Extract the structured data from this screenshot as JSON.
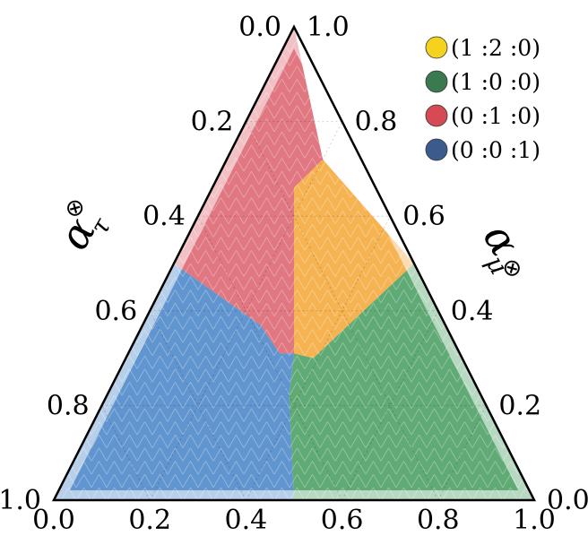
{
  "chart_data": {
    "type": "ternary",
    "axes": {
      "bottom": {
        "label": "",
        "ticks": [
          "0.0",
          "0.2",
          "0.4",
          "0.6",
          "0.8",
          "1.0"
        ]
      },
      "left": {
        "label_symbol": "α",
        "label_sub": "τ",
        "label_sup": "⊗",
        "ticks": [
          "1.0",
          "0.8",
          "0.6",
          "0.4",
          "0.2",
          "0.0"
        ]
      },
      "right": {
        "label_symbol": "α",
        "label_sub": "μ",
        "label_sup": "⊗",
        "ticks": [
          "0.0",
          "0.2",
          "0.4",
          "0.6",
          "0.8",
          "1.0"
        ]
      }
    },
    "legend": {
      "placement": "top-right",
      "entries": [
        {
          "label": "(1 :2 :0)",
          "color": "#f5d21e"
        },
        {
          "label": "(1 :0 :0)",
          "color": "#3b7a4e"
        },
        {
          "label": "(0 :1 :0)",
          "color": "#d64a55"
        },
        {
          "label": "(0 :0 :1)",
          "color": "#3c5a8c"
        }
      ]
    },
    "regions": [
      {
        "label": "(0 :1 :0)",
        "color": "#dc6470",
        "vertices_bottom_left": [
          [
            0.5,
            1.0
          ],
          [
            0.25,
            0.5
          ],
          [
            0.43,
            0.37
          ],
          [
            0.47,
            0.31
          ],
          [
            0.5,
            0.31
          ],
          [
            0.5,
            0.66
          ],
          [
            0.56,
            0.72
          ]
        ]
      },
      {
        "label": "(1 :2 :0)",
        "color": "#f5a83a",
        "vertices_bottom_left": [
          [
            0.56,
            0.72
          ],
          [
            0.5,
            0.66
          ],
          [
            0.5,
            0.31
          ],
          [
            0.54,
            0.3
          ],
          [
            0.75,
            0.5
          ]
        ]
      },
      {
        "label": "(0 :0 :1)",
        "color": "#4a86c8",
        "vertices_bottom_left": [
          [
            0.0,
            0.0
          ],
          [
            0.25,
            0.5
          ],
          [
            0.43,
            0.37
          ],
          [
            0.47,
            0.31
          ],
          [
            0.5,
            0.31
          ],
          [
            0.49,
            0.22
          ],
          [
            0.5,
            0.0
          ]
        ]
      },
      {
        "label": "(1 :0 :0)",
        "color": "#4a9e62",
        "vertices_bottom_left": [
          [
            1.0,
            0.0
          ],
          [
            0.75,
            0.5
          ],
          [
            0.54,
            0.3
          ],
          [
            0.5,
            0.31
          ],
          [
            0.49,
            0.22
          ],
          [
            0.5,
            0.0
          ]
        ]
      }
    ],
    "grid": true
  }
}
